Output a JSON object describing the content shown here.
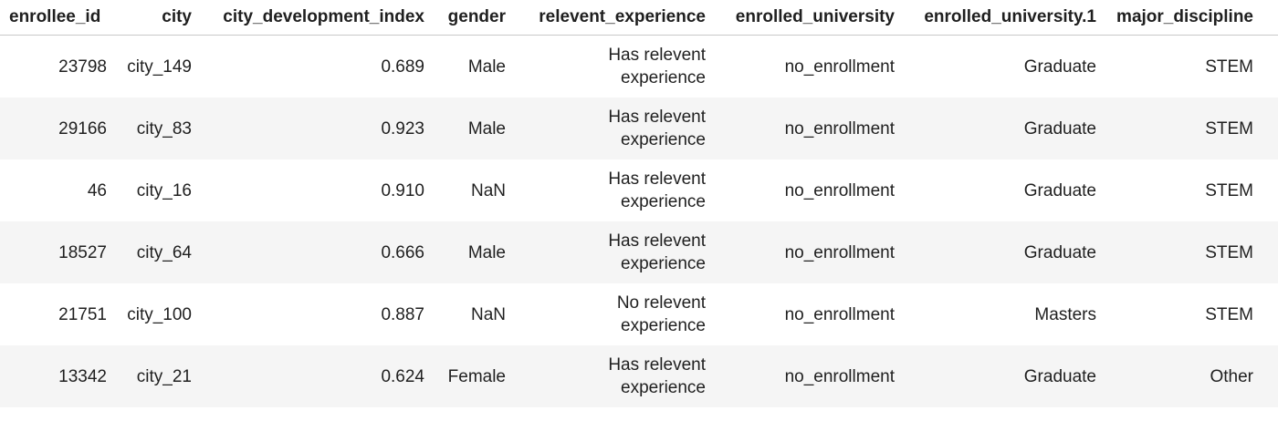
{
  "table": {
    "columns": [
      "enrollee_id",
      "city",
      "city_development_index",
      "gender",
      "relevent_experience",
      "enrolled_university",
      "enrolled_university.1",
      "major_discipline"
    ],
    "rows": [
      {
        "enrollee_id": "23798",
        "city": "city_149",
        "city_development_index": "0.689",
        "gender": "Male",
        "relevent_experience": [
          "Has relevent",
          "experience"
        ],
        "enrolled_university": "no_enrollment",
        "enrolled_university_1": "Graduate",
        "major_discipline": "STEM"
      },
      {
        "enrollee_id": "29166",
        "city": "city_83",
        "city_development_index": "0.923",
        "gender": "Male",
        "relevent_experience": [
          "Has relevent",
          "experience"
        ],
        "enrolled_university": "no_enrollment",
        "enrolled_university_1": "Graduate",
        "major_discipline": "STEM"
      },
      {
        "enrollee_id": "46",
        "city": "city_16",
        "city_development_index": "0.910",
        "gender": "NaN",
        "relevent_experience": [
          "Has relevent",
          "experience"
        ],
        "enrolled_university": "no_enrollment",
        "enrolled_university_1": "Graduate",
        "major_discipline": "STEM"
      },
      {
        "enrollee_id": "18527",
        "city": "city_64",
        "city_development_index": "0.666",
        "gender": "Male",
        "relevent_experience": [
          "Has relevent",
          "experience"
        ],
        "enrolled_university": "no_enrollment",
        "enrolled_university_1": "Graduate",
        "major_discipline": "STEM"
      },
      {
        "enrollee_id": "21751",
        "city": "city_100",
        "city_development_index": "0.887",
        "gender": "NaN",
        "relevent_experience": [
          "No relevent",
          "experience"
        ],
        "enrolled_university": "no_enrollment",
        "enrolled_university_1": "Masters",
        "major_discipline": "STEM"
      },
      {
        "enrollee_id": "13342",
        "city": "city_21",
        "city_development_index": "0.624",
        "gender": "Female",
        "relevent_experience": [
          "Has relevent",
          "experience"
        ],
        "enrolled_university": "no_enrollment",
        "enrolled_university_1": "Graduate",
        "major_discipline": "Other"
      }
    ]
  }
}
